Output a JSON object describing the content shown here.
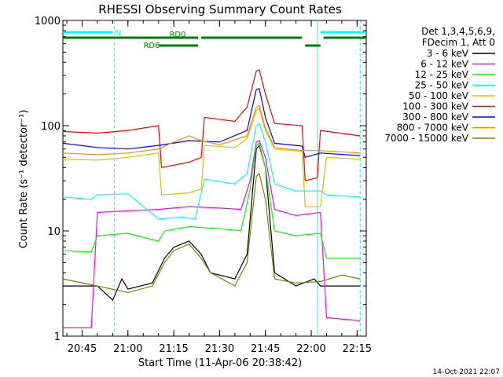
{
  "chart_data": {
    "type": "line",
    "title": "RHESSI Observing Summary Count Rates",
    "xlabel": "Start Time (11-Apr-06 20:38:42)",
    "ylabel": "Count Rate (s⁻¹ detector⁻¹)",
    "y_scale": "log",
    "ylim": [
      1,
      1000
    ],
    "y_ticks": [
      {
        "value": 1,
        "label": "1"
      },
      {
        "value": 10,
        "label": "10"
      },
      {
        "value": 100,
        "label": "100"
      },
      {
        "value": 1000,
        "label": "1000"
      }
    ],
    "xlim": [
      "20:38:42",
      "22:18:00"
    ],
    "x_ticks": [
      {
        "value": "20:45",
        "label": "20:45"
      },
      {
        "value": "21:00",
        "label": "21:00"
      },
      {
        "value": "21:15",
        "label": "21:15"
      },
      {
        "value": "21:30",
        "label": "21:30"
      },
      {
        "value": "21:45",
        "label": "21:45"
      },
      {
        "value": "22:00",
        "label": "22:00"
      },
      {
        "value": "22:15",
        "label": "22:15"
      }
    ],
    "legend_header": [
      "Det 1,3,4,5,6,9,",
      "FDecim 1, Att 0"
    ],
    "series": [
      {
        "name": "3 - 6 keV",
        "color": "#000000",
        "values": [
          [
            "20:38:42",
            3
          ],
          [
            "20:50:00",
            3
          ],
          [
            "20:55:00",
            2.2
          ],
          [
            "20:58:00",
            3.5
          ],
          [
            "21:00:00",
            2.8
          ],
          [
            "21:08:00",
            3.2
          ],
          [
            "21:12:00",
            5.5
          ],
          [
            "21:15:00",
            7
          ],
          [
            "21:20:00",
            8
          ],
          [
            "21:24:00",
            6
          ],
          [
            "21:27:00",
            4
          ],
          [
            "21:35:00",
            3.5
          ],
          [
            "21:39:00",
            6
          ],
          [
            "21:42:00",
            60
          ],
          [
            "21:43:00",
            65
          ],
          [
            "21:45:00",
            40
          ],
          [
            "21:48:00",
            4
          ],
          [
            "21:55:00",
            3
          ],
          [
            "22:01:00",
            3.5
          ],
          [
            "22:03:00",
            3
          ],
          [
            "22:10:00",
            3
          ],
          [
            "22:16:00",
            3
          ]
        ]
      },
      {
        "name": "6 - 12 keV",
        "color": "#ff00ff",
        "values": [
          [
            "20:38:42",
            1.2
          ],
          [
            "20:48:00",
            1.2
          ],
          [
            "20:50:00",
            15
          ],
          [
            "21:00:00",
            15.5
          ],
          [
            "21:10:00",
            16
          ],
          [
            "21:20:00",
            17
          ],
          [
            "21:30:00",
            16.5
          ],
          [
            "21:37:00",
            16
          ],
          [
            "21:40:00",
            30
          ],
          [
            "21:42:00",
            70
          ],
          [
            "21:43:00",
            72
          ],
          [
            "21:45:00",
            50
          ],
          [
            "21:48:00",
            16
          ],
          [
            "21:55:00",
            14
          ],
          [
            "22:03:00",
            15
          ],
          [
            "22:05:00",
            1.5
          ],
          [
            "22:16:00",
            1.4
          ]
        ]
      },
      {
        "name": "12 - 25 keV",
        "color": "#00ff00",
        "values": [
          [
            "20:38:42",
            6.5
          ],
          [
            "20:48:00",
            6.3
          ],
          [
            "20:50:00",
            9
          ],
          [
            "21:00:00",
            9.5
          ],
          [
            "21:10:00",
            8
          ],
          [
            "21:12:00",
            10
          ],
          [
            "21:20:00",
            11
          ],
          [
            "21:30:00",
            10.5
          ],
          [
            "21:37:00",
            10
          ],
          [
            "21:40:00",
            25
          ],
          [
            "21:42:00",
            65
          ],
          [
            "21:43:00",
            68
          ],
          [
            "21:45:00",
            40
          ],
          [
            "21:48:00",
            10
          ],
          [
            "21:55:00",
            9
          ],
          [
            "22:03:00",
            9.5
          ],
          [
            "22:05:00",
            5.5
          ],
          [
            "22:16:00",
            5.5
          ]
        ]
      },
      {
        "name": "25 - 50 keV",
        "color": "#00ffff",
        "values": [
          [
            "20:38:42",
            21
          ],
          [
            "20:48:00",
            20
          ],
          [
            "20:50:00",
            22
          ],
          [
            "21:00:00",
            22.5
          ],
          [
            "21:10:00",
            13
          ],
          [
            "21:18:00",
            13.5
          ],
          [
            "21:22:00",
            13
          ],
          [
            "21:25:00",
            31
          ],
          [
            "21:35:00",
            28
          ],
          [
            "21:39:00",
            35
          ],
          [
            "21:42:00",
            100
          ],
          [
            "21:43:00",
            105
          ],
          [
            "21:45:00",
            70
          ],
          [
            "21:48:00",
            28
          ],
          [
            "21:55:00",
            24
          ],
          [
            "22:03:00",
            24
          ],
          [
            "22:05:00",
            22
          ],
          [
            "22:16:00",
            21
          ]
        ]
      },
      {
        "name": "50 - 100 keV",
        "color": "#e0c000",
        "values": [
          [
            "20:38:42",
            48
          ],
          [
            "20:50:00",
            47
          ],
          [
            "21:00:00",
            50
          ],
          [
            "21:10:00",
            55
          ],
          [
            "21:11:00",
            22
          ],
          [
            "21:20:00",
            23
          ],
          [
            "21:24:00",
            25
          ],
          [
            "21:25:00",
            65
          ],
          [
            "21:35:00",
            62
          ],
          [
            "21:39:00",
            75
          ],
          [
            "21:42:00",
            140
          ],
          [
            "21:43:00",
            145
          ],
          [
            "21:45:00",
            90
          ],
          [
            "21:48:00",
            60
          ],
          [
            "21:57:00",
            57
          ],
          [
            "21:58:00",
            17
          ],
          [
            "22:03:00",
            17
          ],
          [
            "22:05:00",
            50
          ],
          [
            "22:16:00",
            48
          ]
        ]
      },
      {
        "name": "100 - 300 keV",
        "color": "#ff0000",
        "values": [
          [
            "20:38:42",
            88
          ],
          [
            "20:50:00",
            85
          ],
          [
            "21:00:00",
            90
          ],
          [
            "21:10:00",
            100
          ],
          [
            "21:11:00",
            40
          ],
          [
            "21:20:00",
            45
          ],
          [
            "21:24:00",
            50
          ],
          [
            "21:25:00",
            120
          ],
          [
            "21:35:00",
            110
          ],
          [
            "21:39:00",
            150
          ],
          [
            "21:42:00",
            330
          ],
          [
            "21:43:00",
            340
          ],
          [
            "21:45:00",
            200
          ],
          [
            "21:48:00",
            105
          ],
          [
            "21:57:00",
            100
          ],
          [
            "21:58:00",
            30
          ],
          [
            "22:02:00",
            32
          ],
          [
            "22:03:00",
            90
          ],
          [
            "22:16:00",
            80
          ]
        ]
      },
      {
        "name": "300 - 800 keV",
        "color": "#0000ff",
        "values": [
          [
            "20:38:42",
            68
          ],
          [
            "20:50:00",
            62
          ],
          [
            "21:00:00",
            60
          ],
          [
            "21:10:00",
            65
          ],
          [
            "21:20:00",
            72
          ],
          [
            "21:30:00",
            70
          ],
          [
            "21:39:00",
            90
          ],
          [
            "21:42:00",
            220
          ],
          [
            "21:43:00",
            225
          ],
          [
            "21:45:00",
            120
          ],
          [
            "21:48:00",
            68
          ],
          [
            "21:57:00",
            64
          ],
          [
            "21:58:00",
            50
          ],
          [
            "22:03:00",
            55
          ],
          [
            "22:16:00",
            52
          ]
        ]
      },
      {
        "name": "800 - 7000 keV",
        "color": "#ff8c00",
        "values": [
          [
            "20:38:42",
            55
          ],
          [
            "20:50:00",
            53
          ],
          [
            "21:00:00",
            55
          ],
          [
            "21:10:00",
            60
          ],
          [
            "21:15:00",
            70
          ],
          [
            "21:20:00",
            80
          ],
          [
            "21:24:00",
            72
          ],
          [
            "21:30:00",
            66
          ],
          [
            "21:39:00",
            80
          ],
          [
            "21:42:00",
            150
          ],
          [
            "21:43:00",
            155
          ],
          [
            "21:45:00",
            95
          ],
          [
            "21:48:00",
            62
          ],
          [
            "21:57:00",
            58
          ],
          [
            "22:03:00",
            58
          ],
          [
            "22:16:00",
            55
          ]
        ]
      },
      {
        "name": "7000 - 15000 keV",
        "color": "#808000",
        "values": [
          [
            "20:38:42",
            3.5
          ],
          [
            "20:50:00",
            3
          ],
          [
            "21:00:00",
            2.6
          ],
          [
            "21:08:00",
            3
          ],
          [
            "21:12:00",
            5
          ],
          [
            "21:15:00",
            6.5
          ],
          [
            "21:20:00",
            7.5
          ],
          [
            "21:24:00",
            5.5
          ],
          [
            "21:27:00",
            4
          ],
          [
            "21:35:00",
            3
          ],
          [
            "21:39:00",
            5
          ],
          [
            "21:42:00",
            33
          ],
          [
            "21:43:00",
            35
          ],
          [
            "21:45:00",
            20
          ],
          [
            "21:48:00",
            3.5
          ],
          [
            "21:55:00",
            3.2
          ],
          [
            "22:03:00",
            3.3
          ],
          [
            "22:10:00",
            3.8
          ],
          [
            "22:16:00",
            3.5
          ]
        ]
      }
    ],
    "flag_bars": [
      {
        "label": "N",
        "color": "#00ffff",
        "segments": [
          [
            "20:38:42",
            "20:55:00"
          ],
          [
            "22:03:00",
            "22:18:00"
          ]
        ]
      },
      {
        "label": "RD0",
        "color": "#008000",
        "segments": [
          [
            "20:38:42",
            "21:23:00"
          ],
          [
            "21:24:00",
            "21:57:00"
          ],
          [
            "22:04:00",
            "22:18:00"
          ]
        ]
      },
      {
        "label": "RD6",
        "color": "#008000",
        "segments": [
          [
            "21:10:00",
            "21:23:00"
          ],
          [
            "21:58:00",
            "22:03:00"
          ]
        ]
      }
    ],
    "vertical_markers": [
      {
        "time": "20:55:30",
        "color": "#00ffff",
        "style": "dashed"
      },
      {
        "time": "22:02:00",
        "color": "#00ffff",
        "style": "solid"
      },
      {
        "time": "22:16:00",
        "color": "#00ffff",
        "style": "dashed"
      }
    ]
  },
  "footer_timestamp": "14-Oct-2021 22:07"
}
